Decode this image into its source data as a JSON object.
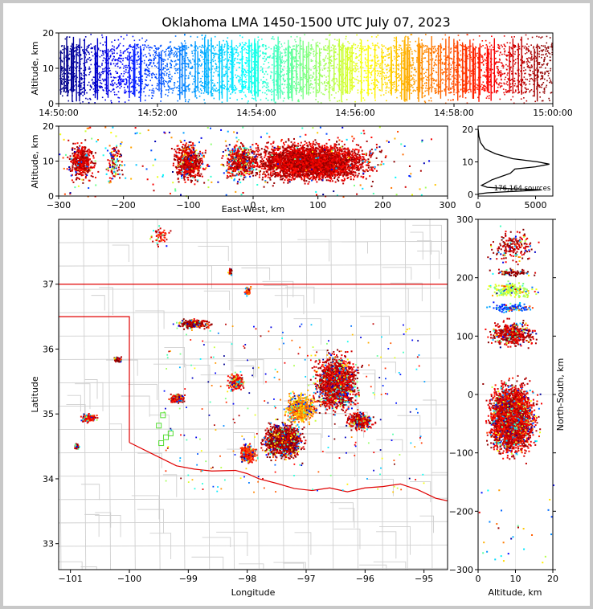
{
  "chart_data": [
    {
      "type": "scatter",
      "panel": "time-altitude",
      "title": "Oklahoma LMA 1450-1500 UTC July 07, 2023",
      "xlabel": "",
      "ylabel": "Altitude, km",
      "ylim": [
        0,
        20
      ],
      "x_ticks": [
        "14:50:00",
        "14:52:00",
        "14:54:00",
        "14:56:00",
        "14:58:00",
        "15:00:00"
      ],
      "y_ticks": [
        "0",
        "10",
        "20"
      ],
      "colormap": "jet (time)",
      "colors": [
        "#00008f",
        "#0000ff",
        "#00ffff",
        "#80ff80",
        "#ffff00",
        "#ff8000",
        "#ff0000",
        "#800000"
      ]
    },
    {
      "type": "scatter",
      "panel": "east-west-altitude",
      "xlabel": "East-West, km",
      "ylabel": "Altitude, km",
      "xlim": [
        -300,
        300
      ],
      "ylim": [
        0,
        20
      ],
      "x_ticks": [
        "−300",
        "−200",
        "−100",
        "0",
        "100",
        "200",
        "300"
      ],
      "y_ticks": [
        "0",
        "10",
        "20"
      ]
    },
    {
      "type": "line",
      "panel": "altitude-histogram",
      "annotation": "176,164 sources",
      "xlim": [
        0,
        6500
      ],
      "ylim": [
        -0.5,
        21
      ],
      "x_ticks": [
        "0",
        "5000"
      ],
      "y_ticks": [
        "0",
        "10",
        "20"
      ],
      "points": [
        {
          "x": 10,
          "y": 20
        },
        {
          "x": 60,
          "y": 18
        },
        {
          "x": 200,
          "y": 16
        },
        {
          "x": 600,
          "y": 14
        },
        {
          "x": 1500,
          "y": 12.5
        },
        {
          "x": 3000,
          "y": 11
        },
        {
          "x": 5200,
          "y": 10
        },
        {
          "x": 6200,
          "y": 9.3
        },
        {
          "x": 5000,
          "y": 8.5
        },
        {
          "x": 3200,
          "y": 7.8
        },
        {
          "x": 2800,
          "y": 6.5
        },
        {
          "x": 2000,
          "y": 5.5
        },
        {
          "x": 1200,
          "y": 4.5
        },
        {
          "x": 700,
          "y": 3.5
        },
        {
          "x": 300,
          "y": 2.8
        },
        {
          "x": 800,
          "y": 2.2
        },
        {
          "x": 2500,
          "y": 1.8
        },
        {
          "x": 5500,
          "y": 1.4
        },
        {
          "x": 3000,
          "y": 0.9
        },
        {
          "x": 800,
          "y": 0.5
        },
        {
          "x": 100,
          "y": 0.2
        },
        {
          "x": 0,
          "y": 0
        }
      ]
    },
    {
      "type": "scatter",
      "panel": "plan-view-map",
      "xlabel": "Longitude",
      "ylabel": "Latitude",
      "xlim": [
        -101.2,
        -94.6
      ],
      "ylim": [
        32.6,
        38.0
      ],
      "x_ticks": [
        "−101",
        "−100",
        "−99",
        "−98",
        "−97",
        "−96",
        "−95"
      ],
      "y_ticks": [
        "33",
        "34",
        "35",
        "36",
        "37"
      ],
      "station_color": "#55dd33"
    },
    {
      "type": "scatter",
      "panel": "altitude-north-south",
      "xlabel": "Altitude, km",
      "ylabel": "North-South, km",
      "xlim": [
        0,
        20
      ],
      "ylim": [
        -300,
        300
      ],
      "x_ticks": [
        "0",
        "10",
        "20"
      ],
      "y_ticks": [
        "−300",
        "−200",
        "−100",
        "0",
        "100",
        "200",
        "300"
      ]
    }
  ]
}
